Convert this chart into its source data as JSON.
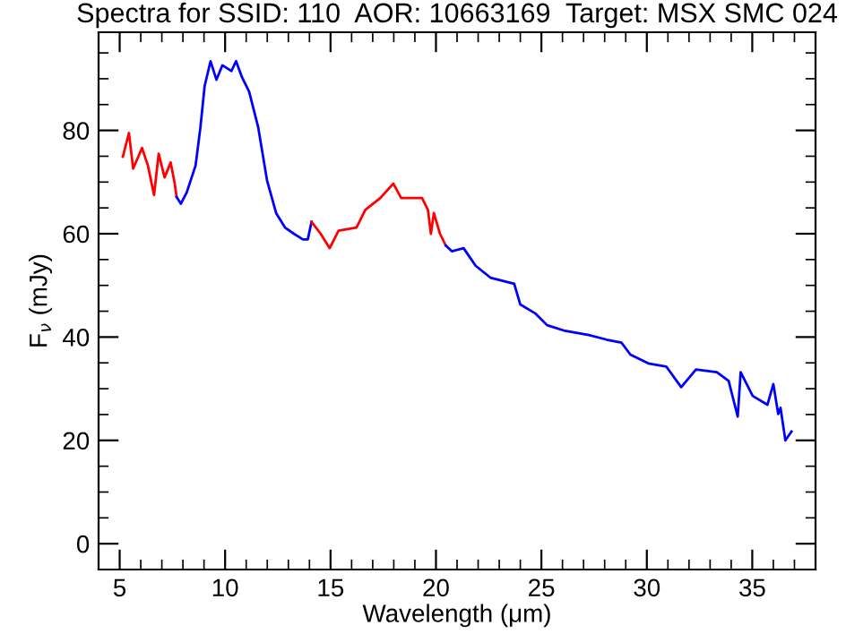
{
  "chart_data": {
    "type": "line",
    "title": "Spectra for SSID: 110  AOR: 10663169  Target: MSX SMC 024",
    "xlabel": "Wavelength (μm)",
    "ylabel": "F$_{ν}$ (mJy)",
    "series": [
      {
        "color": "#ff0000",
        "x": [
          5.15,
          5.44,
          5.64,
          6.06,
          6.34,
          6.63,
          6.85,
          7.13,
          7.42,
          7.61,
          7.7
        ],
        "values": [
          74.9,
          79.5,
          72.6,
          76.6,
          73.2,
          67.5,
          75.5,
          70.9,
          73.8,
          69.7,
          67.1
        ]
      },
      {
        "color": "#0000ff",
        "x": [
          7.7,
          7.9,
          8.18,
          8.6,
          8.83,
          9.03,
          9.31,
          9.59,
          9.87,
          10.3,
          10.52,
          10.8,
          11.14,
          11.57,
          11.99,
          12.42,
          12.84,
          13.26,
          13.69,
          13.92,
          14.1
        ],
        "values": [
          67.1,
          65.8,
          68,
          73.2,
          80.6,
          88.6,
          93.4,
          89.8,
          92.6,
          91.5,
          93.4,
          90.3,
          87.5,
          80.6,
          70.3,
          64,
          61.2,
          60,
          58.9,
          58.9,
          62.3
        ]
      },
      {
        "color": "#ff0000",
        "x": [
          14.1,
          14.53,
          14.96,
          15.38,
          16.23,
          16.65,
          17.36,
          17.98,
          18.35,
          19.34,
          19.62,
          19.76,
          19.9,
          20.19,
          20.47
        ],
        "values": [
          62.3,
          60,
          57.2,
          60.6,
          61.2,
          64.6,
          66.9,
          69.7,
          66.9,
          66.9,
          64.6,
          60,
          64,
          60,
          57.7
        ]
      },
      {
        "color": "#0000ff",
        "x": [
          20.47,
          20.75,
          21.31,
          21.88,
          22.58,
          23.71,
          24,
          24.7,
          25.27,
          26.12,
          27.25,
          28.09,
          28.8,
          29.22,
          30.07,
          30.92,
          31.63,
          32.33,
          33.32,
          33.88,
          34.31,
          34.45,
          35.02,
          35.72,
          36,
          36.23,
          36.34,
          36.57,
          36.86
        ],
        "values": [
          57.7,
          56.6,
          57.2,
          53.8,
          51.5,
          50.3,
          46.3,
          44.6,
          42.3,
          41.2,
          40.4,
          39.5,
          38.9,
          36.6,
          34.9,
          34.3,
          30.3,
          33.7,
          33.2,
          31.5,
          24.6,
          33.2,
          28.6,
          26.9,
          30.9,
          25.1,
          26.3,
          20,
          21.7
        ]
      }
    ],
    "xlim": [
      4,
      38
    ],
    "ylim": [
      -5,
      99
    ],
    "xticks": [
      5,
      10,
      15,
      20,
      25,
      30,
      35
    ],
    "yticks": [
      0,
      20,
      40,
      60,
      80
    ],
    "line_style": "solid",
    "marker": "none",
    "grid": false
  }
}
